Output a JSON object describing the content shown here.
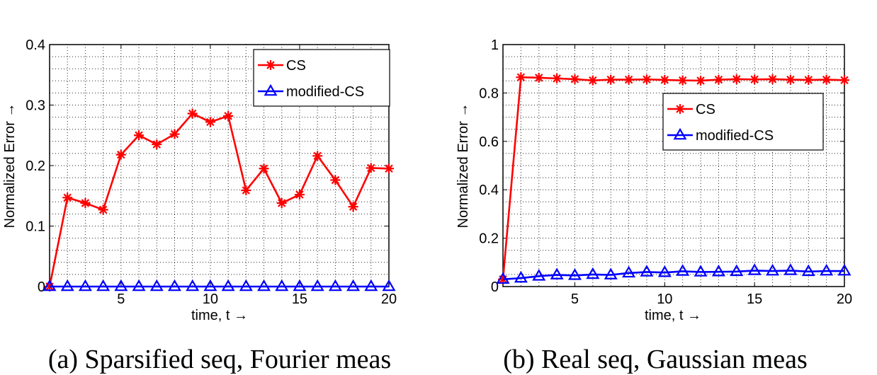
{
  "colors": {
    "cs": "#ff0000",
    "modified_cs": "#0000ff"
  },
  "chart_data": [
    {
      "type": "line",
      "caption": "(a) Sparsified seq, Fourier meas",
      "xlabel": "time, t →",
      "ylabel": "Normalized Error →",
      "xlim": [
        1,
        20
      ],
      "ylim": [
        0,
        0.4
      ],
      "xticks": [
        5,
        10,
        15,
        20
      ],
      "xtick_labels": [
        "5",
        "10",
        "15",
        "20"
      ],
      "yticks": [
        0,
        0.1,
        0.2,
        0.3,
        0.4
      ],
      "ytick_labels": [
        "0",
        "0.1",
        "0.2",
        "0.3",
        "0.4"
      ],
      "grid": true,
      "legend_position": "top-right",
      "x": [
        1,
        2,
        3,
        4,
        5,
        6,
        7,
        8,
        9,
        10,
        11,
        12,
        13,
        14,
        15,
        16,
        17,
        18,
        19,
        20
      ],
      "series": [
        {
          "name": "CS",
          "marker": "star",
          "color": "#ff0000",
          "values": [
            0.0,
            0.147,
            0.138,
            0.127,
            0.218,
            0.25,
            0.235,
            0.252,
            0.286,
            0.272,
            0.282,
            0.159,
            0.195,
            0.138,
            0.152,
            0.216,
            0.176,
            0.132,
            0.196,
            0.195
          ]
        },
        {
          "name": "modified-CS",
          "marker": "triangle",
          "color": "#0000ff",
          "values": [
            0,
            0,
            0,
            0,
            0,
            0,
            0,
            0,
            0,
            0,
            0,
            0,
            0,
            0,
            0,
            0,
            0,
            0,
            0,
            0
          ]
        }
      ]
    },
    {
      "type": "line",
      "caption": "(b) Real seq, Gaussian meas",
      "xlabel": "time, t →",
      "ylabel": "Normalized Error →",
      "xlim": [
        1,
        20
      ],
      "ylim": [
        0,
        1
      ],
      "xticks": [
        5,
        10,
        15,
        20
      ],
      "xtick_labels": [
        "5",
        "10",
        "15",
        "20"
      ],
      "yticks": [
        0,
        0.2,
        0.4,
        0.6,
        0.8,
        1
      ],
      "ytick_labels": [
        "0",
        "0.2",
        "0.4",
        "0.6",
        "0.8",
        "1"
      ],
      "grid": true,
      "legend_position": "center-right",
      "x": [
        1,
        2,
        3,
        4,
        5,
        6,
        7,
        8,
        9,
        10,
        11,
        12,
        13,
        14,
        15,
        16,
        17,
        18,
        19,
        20
      ],
      "series": [
        {
          "name": "CS",
          "marker": "star",
          "color": "#ff0000",
          "values": [
            0.03,
            0.865,
            0.863,
            0.86,
            0.857,
            0.852,
            0.855,
            0.855,
            0.856,
            0.854,
            0.852,
            0.851,
            0.855,
            0.857,
            0.856,
            0.857,
            0.855,
            0.854,
            0.855,
            0.853
          ]
        },
        {
          "name": "modified-CS",
          "marker": "triangle",
          "color": "#0000ff",
          "values": [
            0.03,
            0.035,
            0.043,
            0.048,
            0.046,
            0.05,
            0.048,
            0.056,
            0.06,
            0.058,
            0.063,
            0.06,
            0.061,
            0.062,
            0.066,
            0.064,
            0.066,
            0.062,
            0.064,
            0.064
          ]
        }
      ]
    }
  ]
}
